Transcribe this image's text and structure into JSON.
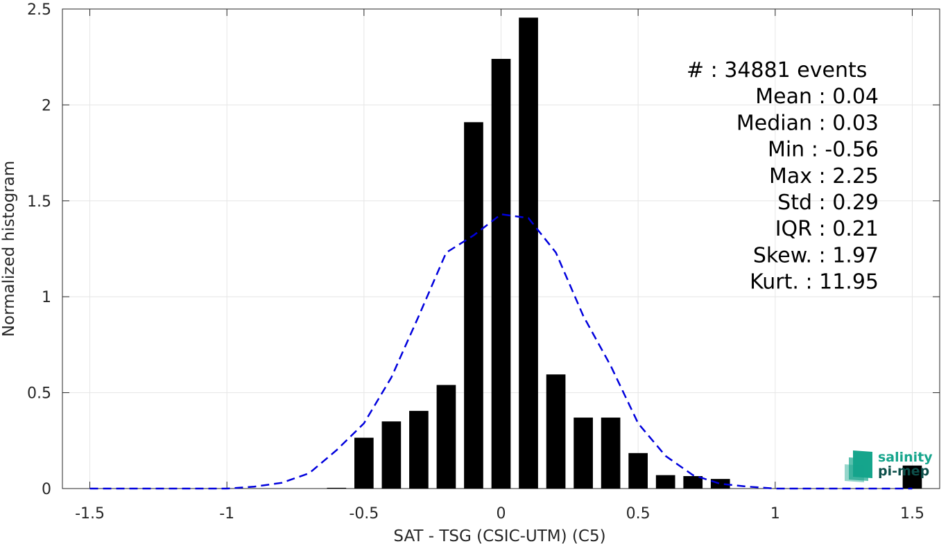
{
  "chart_data": {
    "type": "bar",
    "xlabel": "SAT - TSG (CSIC-UTM) (C5)",
    "ylabel": "Normalized histogram",
    "xlim": [
      -1.6,
      1.6
    ],
    "ylim": [
      0,
      2.5
    ],
    "grid": true,
    "xticks": [
      -1.5,
      -1,
      -0.5,
      0,
      0.5,
      1,
      1.5
    ],
    "xtick_labels": [
      "-1.5",
      "-1",
      "-0.5",
      "0",
      "0.5",
      "1",
      "1.5"
    ],
    "yticks": [
      0,
      0.5,
      1,
      1.5,
      2,
      2.5
    ],
    "ytick_labels": [
      "0",
      "0.5",
      "1",
      "1.5",
      "2",
      "2.5"
    ],
    "bar_width": 0.07,
    "bars": {
      "x": [
        -0.6,
        -0.5,
        -0.4,
        -0.3,
        -0.2,
        -0.1,
        0.0,
        0.1,
        0.2,
        0.3,
        0.4,
        0.5,
        0.6,
        0.7,
        0.8,
        0.9,
        1.0,
        1.1,
        1.2,
        1.3,
        1.4,
        1.5
      ],
      "values": [
        0.004,
        0.265,
        0.35,
        0.405,
        0.54,
        1.91,
        2.24,
        2.455,
        0.595,
        0.37,
        0.37,
        0.185,
        0.07,
        0.065,
        0.05,
        0.0,
        0.0,
        0.0,
        0.0,
        0.0,
        0.0,
        0.12
      ],
      "color": "#000000"
    },
    "gaussian_fit": {
      "style": "dashed",
      "color": "#0000dd",
      "x": [
        -1.5,
        -1.4,
        -1.3,
        -1.2,
        -1.1,
        -1.0,
        -0.9,
        -0.8,
        -0.7,
        -0.6,
        -0.5,
        -0.4,
        -0.3,
        -0.2,
        -0.1,
        0.0,
        0.1,
        0.2,
        0.3,
        0.4,
        0.5,
        0.6,
        0.7,
        0.8,
        0.9,
        1.0,
        1.1,
        1.2,
        1.3,
        1.4,
        1.5
      ],
      "y": [
        0.0,
        0.0,
        0.0,
        0.0,
        0.0,
        0.0,
        0.01,
        0.03,
        0.08,
        0.2,
        0.34,
        0.58,
        0.9,
        1.23,
        1.32,
        1.43,
        1.41,
        1.23,
        0.9,
        0.64,
        0.34,
        0.17,
        0.07,
        0.025,
        0.01,
        0.0,
        0.0,
        0.0,
        0.0,
        0.0,
        0.0
      ]
    },
    "stats": [
      "#  : 34881 events",
      "Mean : 0.04",
      "Median : 0.03",
      "Min : -0.56",
      "Max : 2.25",
      "Std : 0.29",
      "IQR : 0.21",
      "Skew. : 1.97",
      "Kurt. : 11.95"
    ]
  },
  "logo": {
    "line1": "salinity",
    "line2": "pi-mep",
    "color_teal": "#16a58c",
    "color_dark": "#0d4f4a"
  }
}
